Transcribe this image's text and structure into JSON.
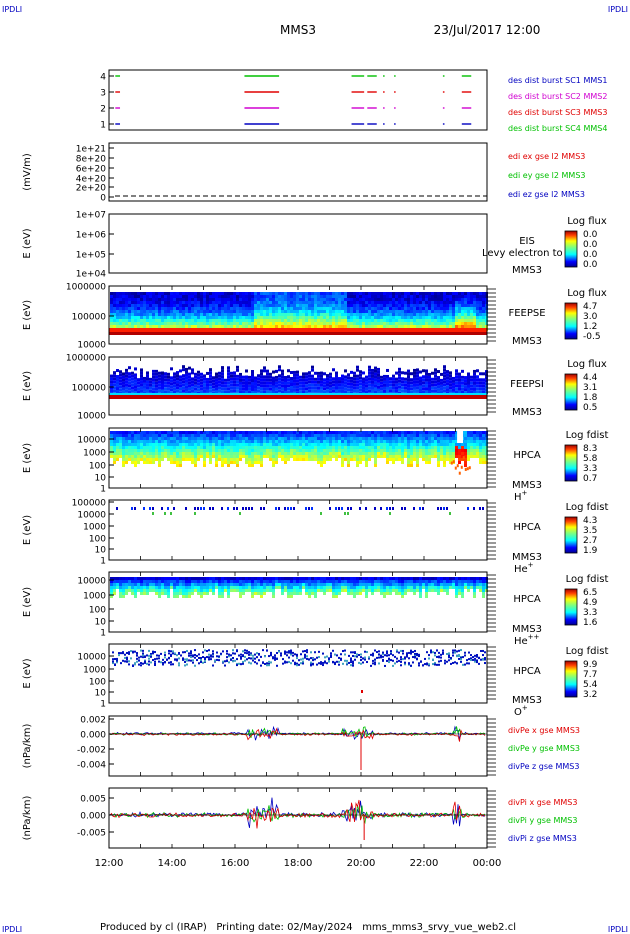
{
  "corner_label": "IPDLI",
  "header": {
    "mission": "MMS3",
    "datetime": "23/Jul/2017 12:00"
  },
  "footer": "Produced by cl (IRAP)   Printing date: 02/May/2024   mms_mms3_srvy_vue_web2.cl",
  "colors": {
    "red": "#e00000",
    "green": "#00c000",
    "blue": "#0000c0",
    "magenta": "#d000d0"
  },
  "chart_data": [
    {
      "id": "burst",
      "type": "timeline",
      "yticks": [
        "4",
        "3",
        "2",
        "1"
      ],
      "legend": [
        {
          "text": "des dist burst SC1 MMS1",
          "color": "#0000c0"
        },
        {
          "text": "des dist burst SC2 MMS2",
          "color": "#d000d0"
        },
        {
          "text": "des dist burst SC3 MMS3",
          "color": "#e00000"
        },
        {
          "text": "des dist burst SC4 MMS4",
          "color": "#00c000"
        }
      ],
      "intervals": [
        [
          12.2,
          12.35
        ],
        [
          16.3,
          17.4
        ],
        [
          19.7,
          20.1
        ],
        [
          20.2,
          20.5
        ],
        [
          20.7,
          20.75
        ],
        [
          21.05,
          21.1
        ],
        [
          22.6,
          22.65
        ],
        [
          23.2,
          23.5
        ]
      ]
    },
    {
      "id": "edi",
      "type": "line",
      "ylabel": "(mV/m)",
      "yticks": [
        "1e+21",
        "8e+20",
        "6e+20",
        "4e+20",
        "2e+20",
        "0"
      ],
      "legend": [
        {
          "text": "edi ex gse l2 MMS3",
          "color": "#e00000"
        },
        {
          "text": "edi ey gse l2 MMS3",
          "color": "#00c000"
        },
        {
          "text": "edi ez gse l2 MMS3",
          "color": "#0000c0"
        }
      ]
    },
    {
      "id": "eis",
      "type": "spectrogram",
      "ylabel": "E (eV)",
      "yticks": [
        "1e+07",
        "1e+06",
        "1e+05",
        "1e+04"
      ],
      "labels": [
        "EIS",
        "MMS3"
      ],
      "overlay": "Levy electron to",
      "colorbar": {
        "title": "Log flux",
        "ticks": [
          "0.0",
          "0.0",
          "0.0",
          "0.0"
        ]
      }
    },
    {
      "id": "feepse",
      "type": "spectrogram",
      "ylabel": "E (eV)",
      "yticks": [
        "1000000",
        "100000",
        "10000"
      ],
      "labels": [
        "FEEPSE",
        "MMS3"
      ],
      "colorbar": {
        "title": "Log flux",
        "ticks": [
          "4.7",
          "3.0",
          "1.2",
          "-0.5"
        ]
      }
    },
    {
      "id": "feepsi",
      "type": "spectrogram",
      "ylabel": "E (eV)",
      "yticks": [
        "1000000",
        "100000",
        "10000"
      ],
      "labels": [
        "FEEPSI",
        "MMS3"
      ],
      "colorbar": {
        "title": "Log flux",
        "ticks": [
          "4.4",
          "3.1",
          "1.8",
          "0.5"
        ]
      }
    },
    {
      "id": "hpca_h",
      "type": "spectrogram",
      "ylabel": "E (eV)",
      "yticks": [
        "10000",
        "1000",
        "100",
        "10",
        "1"
      ],
      "labels": [
        "HPCA",
        "MMS3"
      ],
      "species": "H",
      "charge": "+",
      "colorbar": {
        "title": "Log fdist",
        "ticks": [
          "8.3",
          "5.8",
          "3.3",
          "0.7"
        ]
      }
    },
    {
      "id": "hpca_he1",
      "type": "spectrogram",
      "ylabel": "E (eV)",
      "yticks": [
        "100000",
        "10000",
        "1000",
        "100",
        "10",
        "1"
      ],
      "labels": [
        "HPCA",
        "MMS3"
      ],
      "species": "He",
      "charge": "+",
      "colorbar": {
        "title": "Log fdist",
        "ticks": [
          "4.3",
          "3.5",
          "2.7",
          "1.9"
        ]
      }
    },
    {
      "id": "hpca_he2",
      "type": "spectrogram",
      "ylabel": "E (eV)",
      "yticks": [
        "10000",
        "1000",
        "100",
        "10",
        "1"
      ],
      "labels": [
        "HPCA",
        "MMS3"
      ],
      "species": "He",
      "charge": "++",
      "colorbar": {
        "title": "Log fdist",
        "ticks": [
          "6.5",
          "4.9",
          "3.3",
          "1.6"
        ]
      }
    },
    {
      "id": "hpca_o",
      "type": "spectrogram",
      "ylabel": "E (eV)",
      "yticks": [
        "10000",
        "1000",
        "100",
        "10",
        "1"
      ],
      "labels": [
        "HPCA",
        "MMS3"
      ],
      "species": "O",
      "charge": "+",
      "colorbar": {
        "title": "Log fdist",
        "ticks": [
          "9.9",
          "7.7",
          "5.4",
          "3.2"
        ]
      }
    },
    {
      "id": "divpe",
      "type": "line",
      "ylabel": "(nPa/km)",
      "yticks": [
        "0.002",
        "0.000",
        "-0.002",
        "-0.004"
      ],
      "legend": [
        {
          "text": "divPe x gse MMS3",
          "color": "#e00000"
        },
        {
          "text": "divPe y gse MMS3",
          "color": "#00c000"
        },
        {
          "text": "divPe z gse MMS3",
          "color": "#0000c0"
        }
      ]
    },
    {
      "id": "divpi",
      "type": "line",
      "ylabel": "(nPa/km)",
      "yticks": [
        "0.005",
        "0.000",
        "-0.005"
      ],
      "legend": [
        {
          "text": "divPi x gse MMS3",
          "color": "#e00000"
        },
        {
          "text": "divPi y gse MMS3",
          "color": "#00c000"
        },
        {
          "text": "divPi z gse MMS3",
          "color": "#0000c0"
        }
      ]
    }
  ],
  "xaxis": {
    "ticks": [
      "12:00",
      "14:00",
      "16:00",
      "18:00",
      "20:00",
      "22:00",
      "00:00"
    ],
    "range_hours": [
      12,
      24
    ]
  }
}
